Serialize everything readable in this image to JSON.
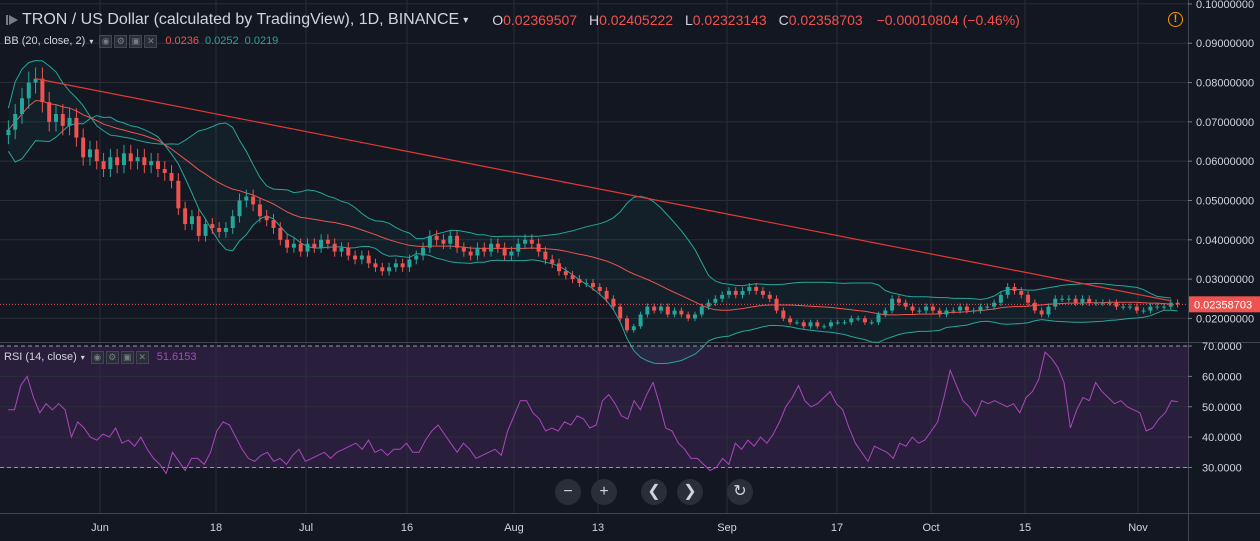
{
  "header": {
    "title": "TRON / US Dollar (calculated by TradingView), 1D, BINANCE",
    "caret": "▾",
    "ohlc": [
      {
        "k": "O",
        "v": "0.02369507"
      },
      {
        "k": "H",
        "v": "0.02405222"
      },
      {
        "k": "L",
        "v": "0.02323143"
      },
      {
        "k": "C",
        "v": "0.02358703"
      }
    ],
    "change": "−0.00010804 (−0.46%)",
    "warning_glyph": "!"
  },
  "bb_legend": {
    "name": "BB (20, close, 2)",
    "caret": "▾",
    "buttons": [
      "◉",
      "⚙",
      "▣",
      "✕"
    ],
    "values": [
      {
        "v": "0.0236",
        "color": "#ef5350"
      },
      {
        "v": "0.0252",
        "color": "#26a69a"
      },
      {
        "v": "0.0219",
        "color": "#26a69a"
      }
    ]
  },
  "rsi_legend": {
    "name": "RSI (14, close)",
    "caret": "▾",
    "buttons": [
      "◉",
      "⚙",
      "▣",
      "✕"
    ],
    "value": "51.6153",
    "value_color": "#ab47bc"
  },
  "nav": {
    "zoom_out": "−",
    "zoom_in": "+",
    "scroll_left": "❮",
    "scroll_right": "❯",
    "reset": "↻"
  },
  "colors": {
    "background": "#131722",
    "up": "#26a69a",
    "down": "#ef5350",
    "bb_band": "#26a69a",
    "bb_basis": "#ef5350",
    "trendline": "#e53935",
    "rsi_line": "#ab47bc",
    "rsi_fill": "#2a1e3d"
  },
  "chart_data": [
    {
      "type": "candlestick",
      "title": "TRON / US Dollar (calculated by TradingView), 1D, BINANCE",
      "x_ticks": [
        "Jun",
        "18",
        "Jul",
        "16",
        "Aug",
        "13",
        "Sep",
        "17",
        "Oct",
        "15",
        "Nov"
      ],
      "y_ticks": [
        "0.10000000",
        "0.09000000",
        "0.08000000",
        "0.07000000",
        "0.06000000",
        "0.05000000",
        "0.04000000",
        "0.03000000",
        "0.02000000"
      ],
      "ylim": [
        0.014,
        0.101
      ],
      "last_price_label": "0.02358703",
      "last_price": 0.02358703,
      "close": [
        0.068,
        0.072,
        0.076,
        0.08,
        0.081,
        0.075,
        0.07,
        0.072,
        0.069,
        0.071,
        0.066,
        0.061,
        0.063,
        0.06,
        0.058,
        0.061,
        0.059,
        0.062,
        0.06,
        0.061,
        0.059,
        0.06,
        0.058,
        0.057,
        0.055,
        0.048,
        0.044,
        0.046,
        0.041,
        0.044,
        0.043,
        0.042,
        0.043,
        0.046,
        0.05,
        0.051,
        0.049,
        0.046,
        0.045,
        0.043,
        0.04,
        0.038,
        0.039,
        0.037,
        0.039,
        0.038,
        0.04,
        0.039,
        0.037,
        0.038,
        0.036,
        0.035,
        0.036,
        0.034,
        0.033,
        0.032,
        0.033,
        0.034,
        0.033,
        0.035,
        0.036,
        0.038,
        0.041,
        0.04,
        0.039,
        0.041,
        0.038,
        0.037,
        0.036,
        0.038,
        0.037,
        0.039,
        0.038,
        0.036,
        0.037,
        0.039,
        0.04,
        0.039,
        0.037,
        0.035,
        0.034,
        0.032,
        0.031,
        0.03,
        0.029,
        0.029,
        0.028,
        0.027,
        0.025,
        0.023,
        0.02,
        0.017,
        0.018,
        0.021,
        0.023,
        0.022,
        0.023,
        0.021,
        0.022,
        0.021,
        0.02,
        0.021,
        0.023,
        0.024,
        0.025,
        0.026,
        0.027,
        0.026,
        0.027,
        0.028,
        0.027,
        0.026,
        0.025,
        0.022,
        0.02,
        0.019,
        0.019,
        0.018,
        0.019,
        0.018,
        0.018,
        0.019,
        0.019,
        0.019,
        0.02,
        0.02,
        0.019,
        0.019,
        0.021,
        0.022,
        0.025,
        0.024,
        0.023,
        0.022,
        0.022,
        0.023,
        0.022,
        0.021,
        0.022,
        0.022,
        0.023,
        0.022,
        0.022,
        0.023,
        0.023,
        0.024,
        0.026,
        0.028,
        0.027,
        0.026,
        0.024,
        0.022,
        0.021,
        0.023,
        0.025,
        0.025,
        0.025,
        0.024,
        0.025,
        0.024,
        0.024,
        0.024,
        0.024,
        0.023,
        0.023,
        0.023,
        0.022,
        0.022,
        0.023,
        0.023,
        0.023,
        0.024,
        0.023587
      ],
      "bb_upper": [
        0.0735,
        0.0802,
        0.0834,
        0.0851,
        0.0856,
        0.0855,
        0.0842,
        0.0827,
        0.0799,
        0.0778,
        0.0761,
        0.0741,
        0.0714,
        0.069,
        0.0677,
        0.0666,
        0.0664,
        0.0661,
        0.0658,
        0.0653,
        0.0649,
        0.0646,
        0.0644,
        0.0643,
        0.0644,
        0.0643,
        0.0653,
        0.0665,
        0.0677,
        0.0681,
        0.0688,
        0.0695,
        0.0697,
        0.0686,
        0.0653,
        0.0625,
        0.0591,
        0.0559,
        0.0537,
        0.0529,
        0.0528,
        0.0527,
        0.052,
        0.0522,
        0.0527,
        0.0525,
        0.0519,
        0.0511,
        0.0506,
        0.0498,
        0.0493,
        0.0482,
        0.0467,
        0.0455,
        0.0448,
        0.0447,
        0.0442,
        0.0431,
        0.0423,
        0.0417,
        0.0403,
        0.0403,
        0.0408,
        0.0415,
        0.0419,
        0.0424,
        0.0424,
        0.0421,
        0.0418,
        0.0413,
        0.0413,
        0.0409,
        0.0408,
        0.0409,
        0.0409,
        0.0409,
        0.0409,
        0.0409,
        0.0409,
        0.0411,
        0.0413,
        0.0415,
        0.0419,
        0.0423,
        0.0428,
        0.0433,
        0.0437,
        0.0441,
        0.0447,
        0.0456,
        0.0471,
        0.0493,
        0.0508,
        0.0511,
        0.0506,
        0.0496,
        0.0481,
        0.0462,
        0.0443,
        0.0423,
        0.04,
        0.0375,
        0.0342,
        0.0309,
        0.0295,
        0.0289,
        0.0287,
        0.0284,
        0.0283,
        0.0286,
        0.0288,
        0.0287,
        0.0286,
        0.0286,
        0.0287,
        0.0289,
        0.0291,
        0.0292,
        0.0292,
        0.0292,
        0.0292,
        0.0291,
        0.029,
        0.0289,
        0.029,
        0.029,
        0.029,
        0.029,
        0.0285,
        0.0271,
        0.0265,
        0.0261,
        0.0257,
        0.0255,
        0.0255,
        0.0255,
        0.0254,
        0.0253,
        0.0253,
        0.0251,
        0.0251,
        0.0251,
        0.025,
        0.0248,
        0.0251,
        0.0257,
        0.0268,
        0.0273,
        0.0274,
        0.0273,
        0.0272,
        0.0272,
        0.0275,
        0.0278,
        0.0281,
        0.0284,
        0.0286,
        0.0287,
        0.0288,
        0.0288,
        0.0289,
        0.0288,
        0.0286,
        0.0284,
        0.0283,
        0.0281,
        0.0279,
        0.0273,
        0.0264,
        0.0256,
        0.0254,
        0.0252
      ],
      "bb_basis": [
        0.068,
        0.07,
        0.072,
        0.074,
        0.0754,
        0.0753,
        0.0746,
        0.0744,
        0.0738,
        0.0735,
        0.0728,
        0.0718,
        0.0711,
        0.0703,
        0.0694,
        0.0689,
        0.0683,
        0.0679,
        0.0674,
        0.067,
        0.0665,
        0.0659,
        0.0653,
        0.0642,
        0.0631,
        0.0618,
        0.0605,
        0.0592,
        0.0578,
        0.0567,
        0.0555,
        0.0545,
        0.0536,
        0.0529,
        0.0525,
        0.0519,
        0.0514,
        0.0506,
        0.0499,
        0.0491,
        0.0481,
        0.0471,
        0.0463,
        0.0457,
        0.0455,
        0.0452,
        0.0449,
        0.0446,
        0.0444,
        0.044,
        0.0436,
        0.0431,
        0.0425,
        0.0419,
        0.0413,
        0.0406,
        0.04,
        0.0395,
        0.039,
        0.0386,
        0.0384,
        0.0383,
        0.0384,
        0.0384,
        0.0384,
        0.0384,
        0.0383,
        0.0381,
        0.0379,
        0.0378,
        0.0378,
        0.0378,
        0.0378,
        0.0378,
        0.0378,
        0.0378,
        0.0378,
        0.0379,
        0.0378,
        0.0377,
        0.0376,
        0.0374,
        0.0371,
        0.0367,
        0.0363,
        0.036,
        0.0356,
        0.0351,
        0.0346,
        0.0339,
        0.0331,
        0.0321,
        0.0313,
        0.0306,
        0.0299,
        0.0291,
        0.0283,
        0.0274,
        0.0266,
        0.0258,
        0.025,
        0.0242,
        0.0233,
        0.0226,
        0.0222,
        0.0221,
        0.0221,
        0.0223,
        0.0225,
        0.0228,
        0.0231,
        0.0233,
        0.0234,
        0.0234,
        0.0234,
        0.0234,
        0.0233,
        0.0232,
        0.0231,
        0.023,
        0.0229,
        0.0228,
        0.0226,
        0.0224,
        0.0222,
        0.022,
        0.0218,
        0.0215,
        0.0212,
        0.0209,
        0.0209,
        0.0209,
        0.021,
        0.021,
        0.0211,
        0.0211,
        0.0211,
        0.0212,
        0.0214,
        0.0215,
        0.0216,
        0.0217,
        0.0219,
        0.022,
        0.0222,
        0.0224,
        0.0227,
        0.0229,
        0.023,
        0.023,
        0.0231,
        0.0233,
        0.0234,
        0.0236,
        0.0237,
        0.0238,
        0.0239,
        0.0239,
        0.0239,
        0.024,
        0.024,
        0.024,
        0.0241,
        0.0241,
        0.0241,
        0.0241,
        0.0241,
        0.024,
        0.0239,
        0.0239,
        0.0238,
        0.0236
      ],
      "bb_lower": [
        0.0625,
        0.0598,
        0.0606,
        0.0629,
        0.0652,
        0.0651,
        0.065,
        0.0661,
        0.0677,
        0.0692,
        0.0695,
        0.0695,
        0.0708,
        0.0716,
        0.0711,
        0.0712,
        0.0702,
        0.0697,
        0.069,
        0.0687,
        0.068,
        0.0672,
        0.0662,
        0.0641,
        0.0618,
        0.0593,
        0.0557,
        0.0519,
        0.0479,
        0.0453,
        0.0422,
        0.0395,
        0.0375,
        0.0372,
        0.0397,
        0.0413,
        0.0437,
        0.0453,
        0.0461,
        0.0453,
        0.0434,
        0.0415,
        0.0406,
        0.0392,
        0.0383,
        0.0379,
        0.0379,
        0.0381,
        0.0382,
        0.0382,
        0.0379,
        0.038,
        0.0383,
        0.0383,
        0.0378,
        0.0365,
        0.0358,
        0.0359,
        0.0357,
        0.0355,
        0.0365,
        0.0363,
        0.036,
        0.0353,
        0.0349,
        0.0344,
        0.0342,
        0.0341,
        0.034,
        0.0343,
        0.0343,
        0.0347,
        0.0348,
        0.0347,
        0.0347,
        0.0347,
        0.0347,
        0.0349,
        0.0347,
        0.0343,
        0.0339,
        0.0333,
        0.0323,
        0.0311,
        0.0298,
        0.0287,
        0.0275,
        0.0261,
        0.0245,
        0.0222,
        0.0191,
        0.0149,
        0.0118,
        0.0101,
        0.0092,
        0.0086,
        0.0085,
        0.0086,
        0.0089,
        0.0093,
        0.0101,
        0.0109,
        0.0124,
        0.0143,
        0.015,
        0.0153,
        0.0155,
        0.0162,
        0.0167,
        0.017,
        0.0174,
        0.0179,
        0.0182,
        0.0182,
        0.0181,
        0.0179,
        0.0175,
        0.0172,
        0.017,
        0.0168,
        0.0166,
        0.0165,
        0.0162,
        0.0159,
        0.0154,
        0.015,
        0.0146,
        0.014,
        0.0139,
        0.0147,
        0.0153,
        0.0159,
        0.0163,
        0.0165,
        0.0167,
        0.0167,
        0.0168,
        0.017,
        0.0177,
        0.0179,
        0.0181,
        0.0183,
        0.0188,
        0.0192,
        0.0193,
        0.019,
        0.0186,
        0.0185,
        0.0186,
        0.0187,
        0.0189,
        0.0194,
        0.0197,
        0.0195,
        0.0193,
        0.0192,
        0.0191,
        0.019,
        0.019,
        0.0191,
        0.0192,
        0.0193,
        0.0195,
        0.0196,
        0.0198,
        0.02,
        0.0201,
        0.0203,
        0.0207,
        0.0214,
        0.0221,
        0.0221,
        0.0219
      ],
      "trendline": [
        {
          "x": 0.03,
          "y": 0.081
        },
        {
          "x": 0.985,
          "y": 0.0245
        }
      ]
    },
    {
      "type": "line",
      "title": "RSI (14, close)",
      "y_ticks": [
        "70.0000",
        "60.0000",
        "50.0000",
        "40.0000",
        "30.0000"
      ],
      "ylim": [
        15,
        71
      ],
      "band": [
        30,
        70
      ],
      "values": [
        49,
        49,
        57,
        60,
        53,
        48,
        51,
        49,
        51,
        49,
        40,
        45,
        43,
        40,
        39,
        41,
        40,
        43,
        38,
        39,
        37,
        40,
        36,
        33,
        31,
        28,
        35,
        32,
        29,
        33,
        33,
        31,
        35,
        42,
        45,
        44,
        40,
        36,
        33,
        32,
        34,
        35,
        32,
        33,
        31,
        34,
        36,
        32,
        33,
        34,
        35,
        33,
        35,
        36,
        37,
        38,
        36,
        39,
        35,
        36,
        34,
        36,
        36,
        38,
        35,
        35,
        39,
        42,
        44,
        41,
        38,
        35,
        38,
        36,
        33,
        34,
        35,
        36,
        34,
        42,
        47,
        52,
        52,
        48,
        46,
        42,
        43,
        42,
        45,
        44,
        47,
        46,
        43,
        44,
        52,
        54,
        51,
        47,
        46,
        52,
        49,
        54,
        58,
        51,
        43,
        42,
        38,
        36,
        33,
        33,
        31,
        29,
        30,
        33,
        31,
        38,
        36,
        39,
        37,
        40,
        38,
        41,
        45,
        50,
        53,
        57,
        52,
        50,
        51,
        53,
        55,
        51,
        49,
        43,
        38,
        35,
        32,
        37,
        36,
        35,
        33,
        38,
        37,
        40,
        38,
        39,
        42,
        45,
        53,
        62,
        57,
        52,
        50,
        47,
        52,
        51,
        52,
        51,
        50,
        51,
        48,
        53,
        55,
        59,
        68,
        66,
        63,
        58,
        43,
        49,
        53,
        52,
        58,
        55,
        53,
        51,
        52,
        50,
        49,
        48,
        42,
        43,
        46,
        48,
        52,
        51.6153
      ]
    }
  ]
}
